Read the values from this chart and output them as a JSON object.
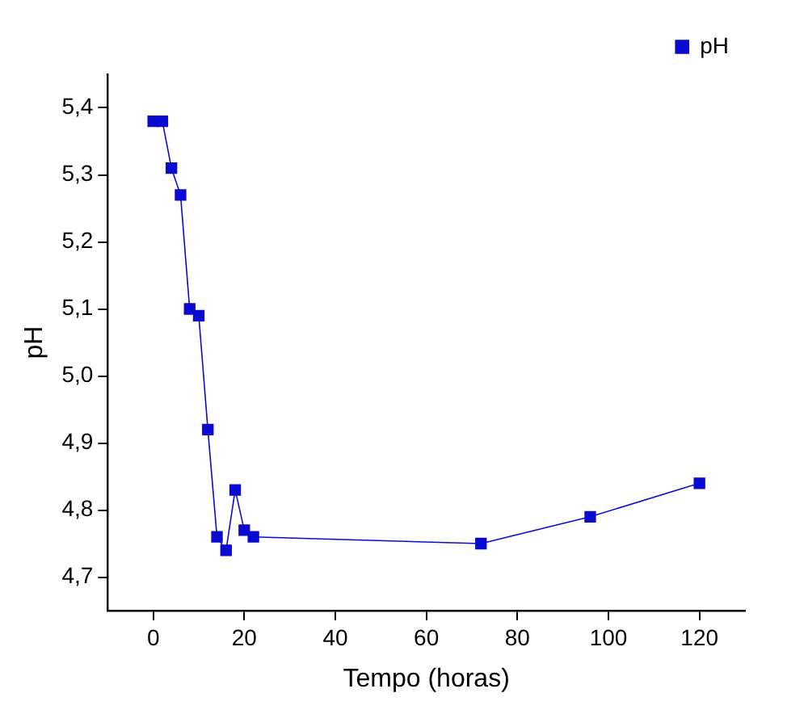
{
  "chart_data": {
    "type": "line",
    "xlabel": "Tempo (horas)",
    "ylabel": "pH",
    "series": [
      {
        "name": "pH",
        "color": "#0a0ad0",
        "x": [
          0,
          2,
          4,
          6,
          8,
          10,
          12,
          14,
          16,
          18,
          20,
          22,
          72,
          96,
          120
        ],
        "values": [
          5.38,
          5.38,
          5.31,
          5.27,
          5.1,
          5.09,
          4.92,
          4.76,
          4.74,
          4.83,
          4.77,
          4.76,
          4.75,
          4.79,
          4.84
        ]
      }
    ],
    "xlim": [
      -10,
      130
    ],
    "xticks": [
      0,
      20,
      40,
      60,
      80,
      100,
      120
    ],
    "ylim": [
      4.65,
      5.45
    ],
    "yticks": [
      {
        "value": 4.7,
        "label": "4,7"
      },
      {
        "value": 4.8,
        "label": "4,8"
      },
      {
        "value": 4.9,
        "label": "4,9"
      },
      {
        "value": 5.0,
        "label": "5,0"
      },
      {
        "value": 5.1,
        "label": "5,1"
      },
      {
        "value": 5.2,
        "label": "5,2"
      },
      {
        "value": 5.3,
        "label": "5,3"
      },
      {
        "value": 5.4,
        "label": "5,4"
      }
    ],
    "marker": "square",
    "line_style": "solid",
    "grid": false,
    "legend": "top right"
  }
}
